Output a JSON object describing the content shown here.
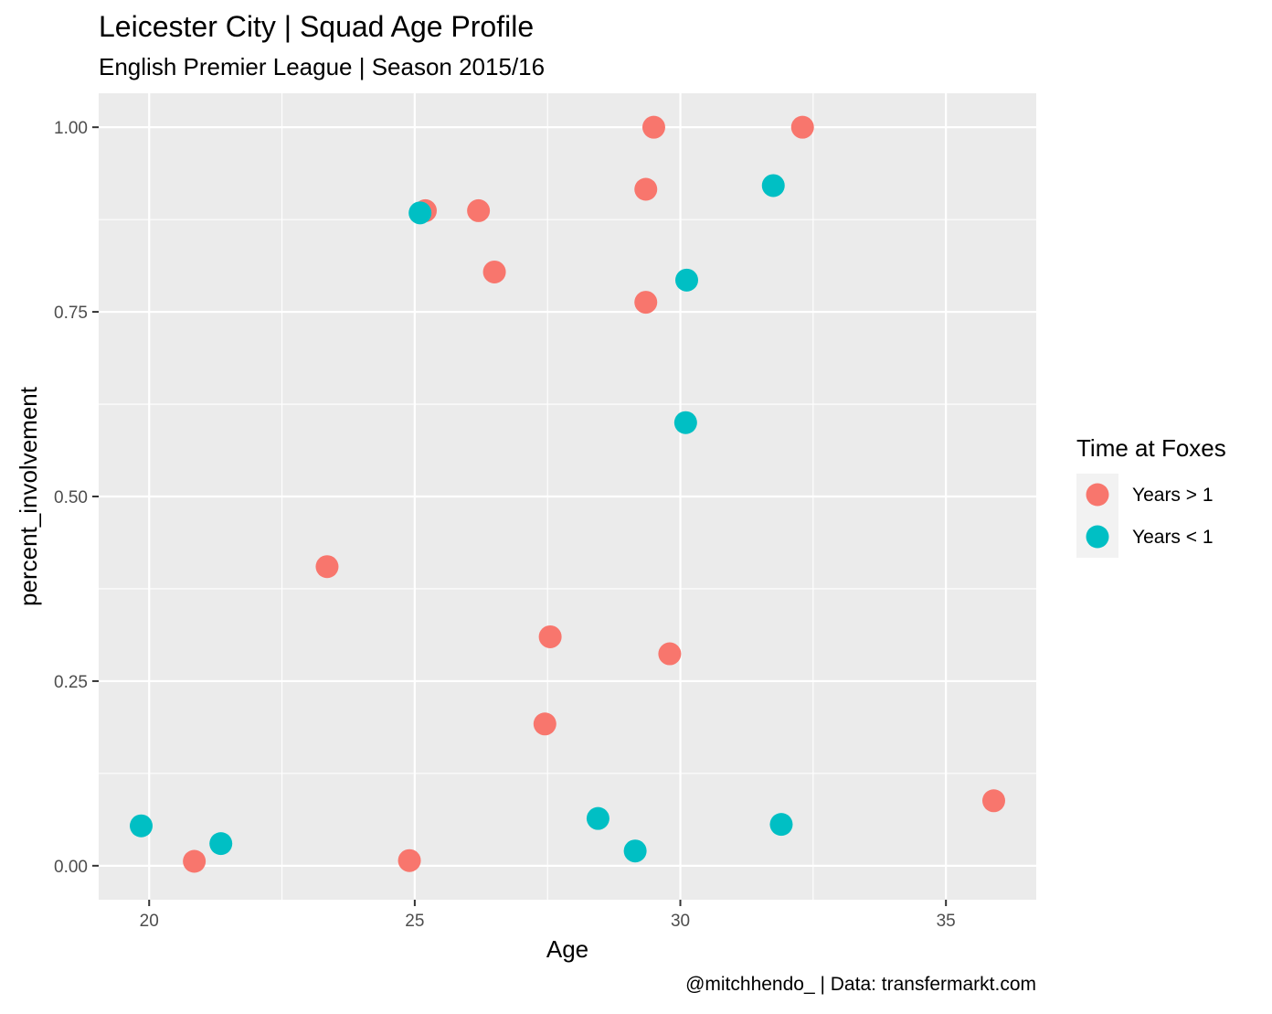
{
  "chart_data": {
    "type": "scatter",
    "title": "Leicester City | Squad Age Profile",
    "subtitle": "English Premier League | Season 2015/16",
    "xlabel": "Age",
    "ylabel": "percent_involvement",
    "caption": "@mitchhendo_ | Data: transfermarkt.com",
    "xlim": [
      19.05,
      36.7
    ],
    "ylim": [
      -0.046,
      1.046
    ],
    "x_ticks": [
      20,
      25,
      30,
      35
    ],
    "x_tick_labels": [
      "20",
      "25",
      "30",
      "35"
    ],
    "y_ticks": [
      0,
      0.25,
      0.5,
      0.75,
      1
    ],
    "y_tick_labels": [
      "0.00",
      "0.25",
      "0.50",
      "0.75",
      "1.00"
    ],
    "grid": true,
    "legend": {
      "title": "Time at Foxes",
      "placement": "right",
      "entries": [
        {
          "label": "Years > 1",
          "color": "#F8766D"
        },
        {
          "label": "Years < 1",
          "color": "#00BFC4"
        }
      ]
    },
    "colors": {
      "panel_background": "#EBEBEB",
      "grid_color": "#FFFFFF",
      "text_color": "#000000",
      "tick_text_color": "#4D4D4D",
      "tick_mark_color": "#333333",
      "legend_key_background": "#F2F2F2"
    },
    "series": [
      {
        "name": "Years > 1",
        "color": "#F8766D",
        "points": [
          {
            "x": 20.85,
            "y": 0.006
          },
          {
            "x": 23.35,
            "y": 0.405
          },
          {
            "x": 24.9,
            "y": 0.007
          },
          {
            "x": 25.2,
            "y": 0.887
          },
          {
            "x": 26.2,
            "y": 0.887
          },
          {
            "x": 26.5,
            "y": 0.804
          },
          {
            "x": 27.45,
            "y": 0.192
          },
          {
            "x": 27.55,
            "y": 0.31
          },
          {
            "x": 29.35,
            "y": 0.916
          },
          {
            "x": 29.35,
            "y": 0.763
          },
          {
            "x": 29.5,
            "y": 1.0
          },
          {
            "x": 29.8,
            "y": 0.287
          },
          {
            "x": 32.3,
            "y": 1.0
          },
          {
            "x": 35.9,
            "y": 0.088
          }
        ]
      },
      {
        "name": "Years < 1",
        "color": "#00BFC4",
        "points": [
          {
            "x": 19.85,
            "y": 0.054
          },
          {
            "x": 21.35,
            "y": 0.03
          },
          {
            "x": 25.1,
            "y": 0.884
          },
          {
            "x": 28.45,
            "y": 0.064
          },
          {
            "x": 29.15,
            "y": 0.02
          },
          {
            "x": 30.1,
            "y": 0.6
          },
          {
            "x": 30.12,
            "y": 0.793
          },
          {
            "x": 31.75,
            "y": 0.921
          },
          {
            "x": 31.9,
            "y": 0.056
          }
        ]
      }
    ]
  }
}
